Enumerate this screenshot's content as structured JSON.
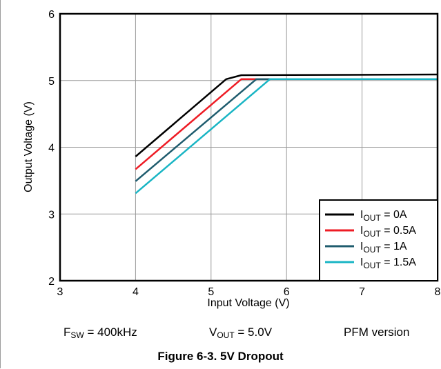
{
  "chart_data": {
    "type": "line",
    "xlabel": "Input Voltage (V)",
    "ylabel": "Output Voltage (V)",
    "xlim": [
      3,
      8
    ],
    "ylim": [
      2,
      6
    ],
    "xticks": [
      "3",
      "4",
      "5",
      "6",
      "7",
      "8"
    ],
    "yticks": [
      "2",
      "3",
      "4",
      "5",
      "6"
    ],
    "grid": true,
    "legend_position": "bottom-right",
    "series": [
      {
        "name": "I_OUT = 0A",
        "label_main": "I",
        "label_sub": "OUT",
        "label_rest": " = 0A",
        "color": "#000000",
        "x": [
          4.0,
          5.2,
          5.4,
          8.0
        ],
        "y": [
          3.86,
          5.02,
          5.08,
          5.09
        ]
      },
      {
        "name": "I_OUT = 0.5A",
        "label_main": "I",
        "label_sub": "OUT",
        "label_rest": " = 0.5A",
        "color": "#ee1c25",
        "x": [
          4.0,
          5.4,
          8.0
        ],
        "y": [
          3.67,
          5.02,
          5.02
        ]
      },
      {
        "name": "I_OUT = 1A",
        "label_main": "I",
        "label_sub": "OUT",
        "label_rest": " = 1A",
        "color": "#1f5c6e",
        "x": [
          4.0,
          5.6,
          8.0
        ],
        "y": [
          3.49,
          5.02,
          5.02
        ]
      },
      {
        "name": "I_OUT = 1.5A",
        "label_main": "I",
        "label_sub": "OUT",
        "label_rest": " = 1.5A",
        "color": "#19b5c4",
        "x": [
          4.0,
          5.78,
          8.0
        ],
        "y": [
          3.31,
          5.02,
          5.02
        ]
      }
    ]
  },
  "notes": {
    "fsw_main": "F",
    "fsw_sub": "SW",
    "fsw_rest": " = 400kHz",
    "vout_main": "V",
    "vout_sub": "OUT",
    "vout_rest": " = 5.0V",
    "version": "PFM version"
  },
  "caption": "Figure 6-3. 5V Dropout"
}
